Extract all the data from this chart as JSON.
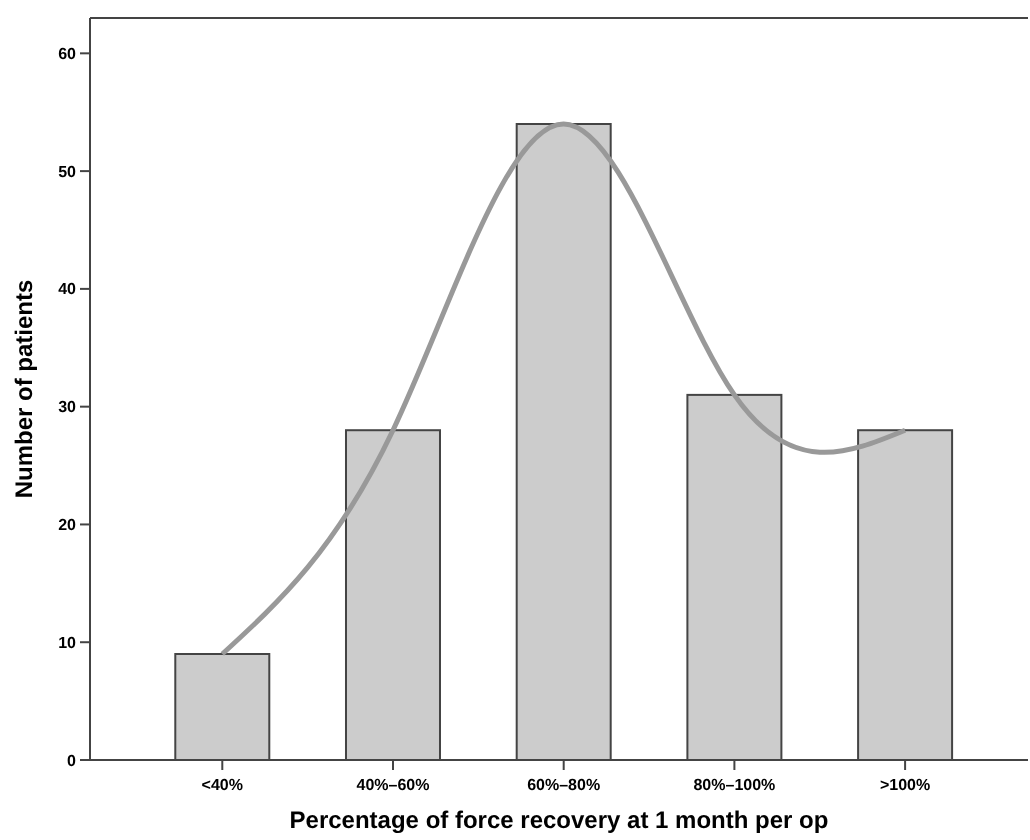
{
  "chart_data": {
    "type": "bar",
    "xlabel": "Percentage of force recovery at 1 month per op",
    "ylabel": "Number of patients",
    "categories": [
      "<40%",
      "40%–60%",
      "60%–80%",
      "80%–100%",
      ">100%"
    ],
    "series": [
      {
        "color": "#cccccc",
        "values": [
          9,
          28,
          54,
          31,
          28
        ]
      },
      {
        "type": "line",
        "color": "#999999",
        "values": [
          9,
          28,
          54,
          31,
          28
        ]
      }
    ],
    "ylim": [
      0,
      63
    ],
    "yticks": [
      0,
      10,
      20,
      30,
      40,
      50,
      60
    ],
    "grid": false,
    "marker": "none",
    "line_style": "solid"
  }
}
